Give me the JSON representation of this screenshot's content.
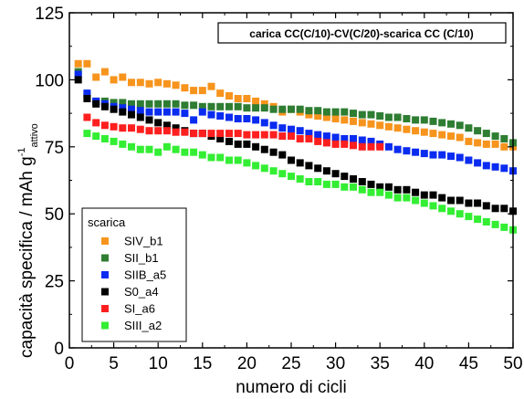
{
  "chart_data": {
    "type": "scatter",
    "title": "carica CC(C/10)-CV(C/20)-scarica CC (C/10)",
    "xlabel": "numero di cicli",
    "ylabel": {
      "main": "capacità specifica / mAh g",
      "sup": "-1",
      "sub": "attivo"
    },
    "xlim": [
      0,
      50
    ],
    "ylim": [
      0,
      125
    ],
    "xticks": [
      0,
      5,
      10,
      15,
      20,
      25,
      30,
      35,
      40,
      45,
      50
    ],
    "yticks": [
      0,
      25,
      50,
      75,
      100,
      125
    ],
    "legend": {
      "title": "scarica",
      "position": "bottom-left"
    },
    "series": [
      {
        "name": "SIV_b1",
        "color": "#f7941d",
        "points": [
          [
            1,
            106
          ],
          [
            2,
            106
          ],
          [
            3,
            101
          ],
          [
            4,
            103
          ],
          [
            5,
            100
          ],
          [
            6,
            101
          ],
          [
            7,
            99
          ],
          [
            8,
            99
          ],
          [
            9,
            98.5
          ],
          [
            10,
            99
          ],
          [
            11,
            98.5
          ],
          [
            12,
            98
          ],
          [
            13,
            97
          ],
          [
            14,
            96
          ],
          [
            15,
            96
          ],
          [
            16,
            97.5
          ],
          [
            17,
            95
          ],
          [
            18,
            94
          ],
          [
            19,
            93
          ],
          [
            20,
            93
          ],
          [
            21,
            92
          ],
          [
            22,
            91
          ],
          [
            23,
            90
          ],
          [
            24,
            88
          ],
          [
            25,
            89
          ],
          [
            26,
            88
          ],
          [
            27,
            87
          ],
          [
            28,
            86.5
          ],
          [
            29,
            86
          ],
          [
            30,
            85.5
          ],
          [
            31,
            85
          ],
          [
            32,
            84.5
          ],
          [
            33,
            84
          ],
          [
            34,
            83.5
          ],
          [
            35,
            83
          ],
          [
            36,
            82.5
          ],
          [
            37,
            82
          ],
          [
            38,
            81.5
          ],
          [
            39,
            81
          ],
          [
            40,
            80.5
          ],
          [
            41,
            80
          ],
          [
            42,
            79.5
          ],
          [
            43,
            79
          ],
          [
            44,
            78.5
          ],
          [
            45,
            77
          ],
          [
            46,
            76.5
          ],
          [
            47,
            76
          ],
          [
            48,
            76
          ],
          [
            49,
            75
          ],
          [
            50,
            75
          ]
        ]
      },
      {
        "name": "SII_b1",
        "color": "#2e7d32",
        "points": [
          [
            1,
            103
          ],
          [
            2,
            94
          ],
          [
            3,
            92
          ],
          [
            4,
            92
          ],
          [
            5,
            91.5
          ],
          [
            6,
            91.5
          ],
          [
            7,
            91
          ],
          [
            8,
            91
          ],
          [
            9,
            91
          ],
          [
            10,
            91
          ],
          [
            11,
            91
          ],
          [
            12,
            91
          ],
          [
            13,
            90.5
          ],
          [
            14,
            90.5
          ],
          [
            15,
            90
          ],
          [
            16,
            90
          ],
          [
            17,
            90
          ],
          [
            18,
            90
          ],
          [
            19,
            90
          ],
          [
            20,
            89.5
          ],
          [
            21,
            89.5
          ],
          [
            22,
            89.5
          ],
          [
            23,
            89
          ],
          [
            24,
            89
          ],
          [
            25,
            89
          ],
          [
            26,
            89
          ],
          [
            27,
            88.5
          ],
          [
            28,
            88.5
          ],
          [
            29,
            88
          ],
          [
            30,
            88
          ],
          [
            31,
            88
          ],
          [
            32,
            87.5
          ],
          [
            33,
            87
          ],
          [
            34,
            87
          ],
          [
            35,
            86.5
          ],
          [
            36,
            86
          ],
          [
            37,
            86
          ],
          [
            38,
            85.5
          ],
          [
            39,
            85
          ],
          [
            40,
            85
          ],
          [
            41,
            84.5
          ],
          [
            42,
            84
          ],
          [
            43,
            83.5
          ],
          [
            44,
            83
          ],
          [
            45,
            82
          ],
          [
            46,
            81
          ],
          [
            47,
            80
          ],
          [
            48,
            79
          ],
          [
            49,
            78
          ],
          [
            50,
            76.5
          ]
        ]
      },
      {
        "name": "SIIB_a5",
        "color": "#0a2bf0",
        "points": [
          [
            1,
            102
          ],
          [
            2,
            95
          ],
          [
            3,
            92
          ],
          [
            4,
            91
          ],
          [
            5,
            90
          ],
          [
            6,
            89.5
          ],
          [
            7,
            89
          ],
          [
            8,
            88.5
          ],
          [
            9,
            88
          ],
          [
            10,
            88
          ],
          [
            11,
            88
          ],
          [
            12,
            88
          ],
          [
            13,
            87.5
          ],
          [
            14,
            85
          ],
          [
            15,
            88
          ],
          [
            16,
            87
          ],
          [
            17,
            86.5
          ],
          [
            18,
            86
          ],
          [
            19,
            85.5
          ],
          [
            20,
            85.5
          ],
          [
            21,
            85
          ],
          [
            22,
            84
          ],
          [
            23,
            83
          ],
          [
            24,
            82
          ],
          [
            25,
            81.5
          ],
          [
            26,
            81
          ],
          [
            27,
            80
          ],
          [
            28,
            79.5
          ],
          [
            29,
            79
          ],
          [
            30,
            78.5
          ],
          [
            31,
            78
          ],
          [
            32,
            78
          ],
          [
            33,
            77.5
          ],
          [
            34,
            77
          ],
          [
            35,
            76
          ],
          [
            36,
            75
          ],
          [
            37,
            74
          ],
          [
            38,
            73.5
          ],
          [
            39,
            73
          ],
          [
            40,
            72.5
          ],
          [
            41,
            72
          ],
          [
            42,
            72
          ],
          [
            43,
            71.5
          ],
          [
            44,
            71
          ],
          [
            45,
            70
          ],
          [
            46,
            69
          ],
          [
            47,
            68
          ],
          [
            48,
            67.5
          ],
          [
            49,
            67
          ],
          [
            50,
            66
          ]
        ]
      },
      {
        "name": "S0_a4",
        "color": "#000000",
        "points": [
          [
            1,
            100
          ],
          [
            2,
            93
          ],
          [
            3,
            91
          ],
          [
            4,
            90
          ],
          [
            5,
            89
          ],
          [
            6,
            88
          ],
          [
            7,
            87
          ],
          [
            8,
            86
          ],
          [
            9,
            85
          ],
          [
            10,
            84
          ],
          [
            11,
            83
          ],
          [
            12,
            82
          ],
          [
            13,
            81
          ],
          [
            14,
            80
          ],
          [
            15,
            80
          ],
          [
            16,
            79
          ],
          [
            17,
            78
          ],
          [
            18,
            77
          ],
          [
            19,
            76
          ],
          [
            20,
            76
          ],
          [
            21,
            75
          ],
          [
            22,
            74
          ],
          [
            23,
            73
          ],
          [
            24,
            72
          ],
          [
            25,
            70
          ],
          [
            26,
            69
          ],
          [
            27,
            68
          ],
          [
            28,
            67
          ],
          [
            29,
            66
          ],
          [
            30,
            65
          ],
          [
            31,
            64
          ],
          [
            32,
            63
          ],
          [
            33,
            62
          ],
          [
            34,
            61
          ],
          [
            35,
            60
          ],
          [
            36,
            60
          ],
          [
            37,
            59
          ],
          [
            38,
            59
          ],
          [
            39,
            58
          ],
          [
            40,
            57
          ],
          [
            41,
            57
          ],
          [
            42,
            56
          ],
          [
            43,
            55
          ],
          [
            44,
            55
          ],
          [
            45,
            54
          ],
          [
            46,
            54
          ],
          [
            47,
            53
          ],
          [
            48,
            52
          ],
          [
            49,
            52
          ],
          [
            50,
            51
          ]
        ]
      },
      {
        "name": "SI_a6",
        "color": "#ff1f1f",
        "points": [
          [
            2,
            86
          ],
          [
            3,
            84
          ],
          [
            4,
            83
          ],
          [
            5,
            82.5
          ],
          [
            6,
            82
          ],
          [
            7,
            82
          ],
          [
            8,
            81.5
          ],
          [
            9,
            81
          ],
          [
            10,
            81
          ],
          [
            11,
            81
          ],
          [
            12,
            80.5
          ],
          [
            13,
            80.5
          ],
          [
            14,
            80
          ],
          [
            15,
            80
          ],
          [
            16,
            80
          ],
          [
            17,
            80
          ],
          [
            18,
            80
          ],
          [
            19,
            80
          ],
          [
            20,
            79.5
          ],
          [
            21,
            79.5
          ],
          [
            22,
            79.5
          ],
          [
            23,
            79.5
          ],
          [
            24,
            79
          ],
          [
            25,
            79
          ],
          [
            26,
            78
          ],
          [
            27,
            78
          ],
          [
            28,
            77
          ],
          [
            29,
            76.5
          ],
          [
            30,
            76
          ],
          [
            31,
            76
          ],
          [
            32,
            75.5
          ],
          [
            33,
            75
          ],
          [
            34,
            75
          ],
          [
            35,
            75
          ]
        ]
      },
      {
        "name": "SIII_a2",
        "color": "#33ee33",
        "points": [
          [
            2,
            80
          ],
          [
            3,
            79
          ],
          [
            4,
            78
          ],
          [
            5,
            77
          ],
          [
            6,
            76
          ],
          [
            7,
            75
          ],
          [
            8,
            74
          ],
          [
            9,
            74
          ],
          [
            10,
            73
          ],
          [
            11,
            75
          ],
          [
            12,
            74
          ],
          [
            13,
            73
          ],
          [
            14,
            73
          ],
          [
            15,
            72
          ],
          [
            16,
            71
          ],
          [
            17,
            71
          ],
          [
            18,
            70
          ],
          [
            19,
            70
          ],
          [
            20,
            69
          ],
          [
            21,
            68
          ],
          [
            22,
            67
          ],
          [
            23,
            66
          ],
          [
            24,
            65
          ],
          [
            25,
            64
          ],
          [
            26,
            63
          ],
          [
            27,
            62
          ],
          [
            28,
            62
          ],
          [
            29,
            61
          ],
          [
            30,
            61
          ],
          [
            31,
            60
          ],
          [
            32,
            60
          ],
          [
            33,
            59
          ],
          [
            34,
            58
          ],
          [
            35,
            58
          ],
          [
            36,
            57
          ],
          [
            37,
            56
          ],
          [
            38,
            56
          ],
          [
            39,
            55
          ],
          [
            40,
            54
          ],
          [
            41,
            53
          ],
          [
            42,
            52
          ],
          [
            43,
            51
          ],
          [
            44,
            50
          ],
          [
            45,
            49
          ],
          [
            46,
            48
          ],
          [
            47,
            47
          ],
          [
            48,
            46
          ],
          [
            49,
            45
          ],
          [
            50,
            44
          ]
        ]
      }
    ]
  }
}
